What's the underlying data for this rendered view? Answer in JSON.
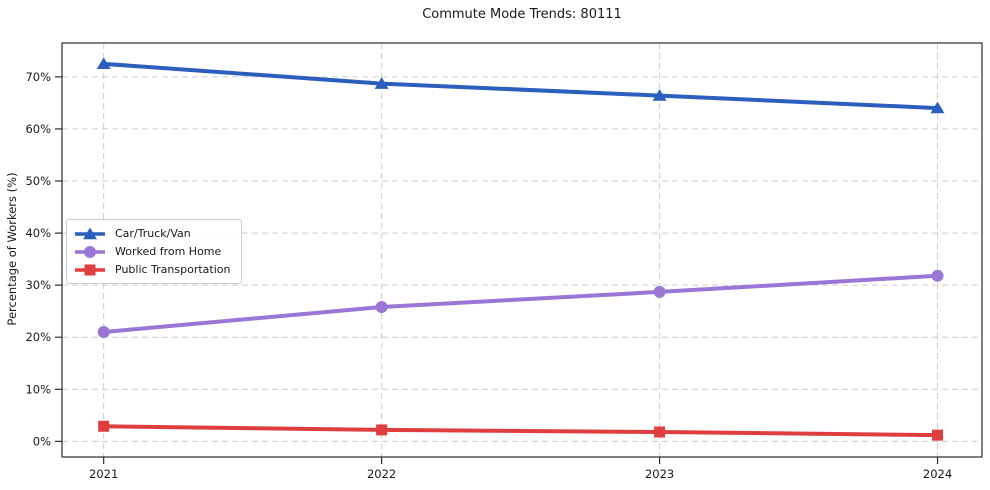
{
  "chart_data": {
    "type": "line",
    "title": "Commute Mode Trends: 80111",
    "xlabel": "",
    "ylabel": "Percentage of Workers (%)",
    "x": [
      2021,
      2022,
      2023,
      2024
    ],
    "x_tick_labels": [
      "2021",
      "2022",
      "2023",
      "2024"
    ],
    "y_ticks": [
      0,
      10,
      20,
      30,
      40,
      50,
      60,
      70
    ],
    "y_tick_suffix": "%",
    "ylim": [
      -3,
      76.5
    ],
    "xlim": [
      2020.85,
      2024.16
    ],
    "grid": true,
    "grid_style": "dashed",
    "legend_position": "center-left",
    "series": [
      {
        "name": "Car/Truck/Van",
        "color": "#2b5fbd",
        "marker": "triangle",
        "values": [
          72.5,
          68.7,
          66.4,
          64.0
        ]
      },
      {
        "name": "Worked from Home",
        "color": "#9a77d6",
        "marker": "circle",
        "values": [
          21.0,
          25.8,
          28.7,
          31.8
        ]
      },
      {
        "name": "Public Transportation",
        "color": "#e03e3e",
        "marker": "square",
        "values": [
          2.9,
          2.2,
          1.8,
          1.2
        ]
      }
    ],
    "colors": {
      "grid": "#cdcdcd",
      "spine": "#2b2b2b",
      "text": "#1a1a1a",
      "background": "#ffffff"
    }
  }
}
